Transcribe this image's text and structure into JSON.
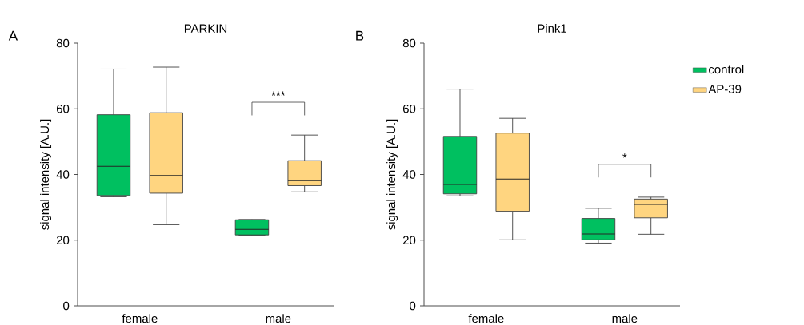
{
  "chart_data": [
    {
      "type": "box",
      "title": "PARKIN",
      "ylabel": "signal intensity [A.U.]",
      "categories": [
        "female",
        "male"
      ],
      "ylim": [
        0,
        80
      ],
      "yticks": [
        0,
        20,
        40,
        60,
        80
      ],
      "grid": false,
      "legend": false,
      "series": [
        {
          "color": "#00c060",
          "boxes": [
            {
              "low": 33.2,
              "q1": 33.6,
              "median": 42.5,
              "q3": 58.2,
              "high": 72.1
            },
            {
              "low": 21.5,
              "q1": 21.6,
              "median": 23.3,
              "q3": 26.2,
              "high": 26.3
            }
          ]
        },
        {
          "color": "#ffd580",
          "boxes": [
            {
              "low": 24.7,
              "q1": 34.3,
              "median": 39.7,
              "q3": 58.8,
              "high": 72.7
            },
            {
              "low": 34.7,
              "q1": 36.6,
              "median": 38.1,
              "q3": 44.2,
              "high": 52.0
            }
          ]
        }
      ],
      "annotations": [
        "A",
        "***"
      ]
    },
    {
      "type": "box",
      "title": "Pink1",
      "ylabel": "signal intensity [A.U.]",
      "categories": [
        "female",
        "male"
      ],
      "ylim": [
        0,
        80
      ],
      "yticks": [
        0,
        20,
        40,
        60,
        80
      ],
      "grid": false,
      "legend": "top right",
      "series": [
        {
          "name": "control",
          "color": "#00c060",
          "boxes": [
            {
              "low": 33.5,
              "q1": 34.1,
              "median": 37.0,
              "q3": 51.6,
              "high": 66.0
            },
            {
              "low": 19.1,
              "q1": 20.1,
              "median": 21.9,
              "q3": 26.6,
              "high": 29.7
            }
          ]
        },
        {
          "name": "AP-39",
          "color": "#ffd580",
          "boxes": [
            {
              "low": 20.1,
              "q1": 28.8,
              "median": 38.6,
              "q3": 52.6,
              "high": 57.1
            },
            {
              "low": 21.8,
              "q1": 26.8,
              "median": 30.9,
              "q3": 32.5,
              "high": 33.1
            }
          ]
        }
      ],
      "annotations": [
        "B",
        "*"
      ]
    }
  ]
}
